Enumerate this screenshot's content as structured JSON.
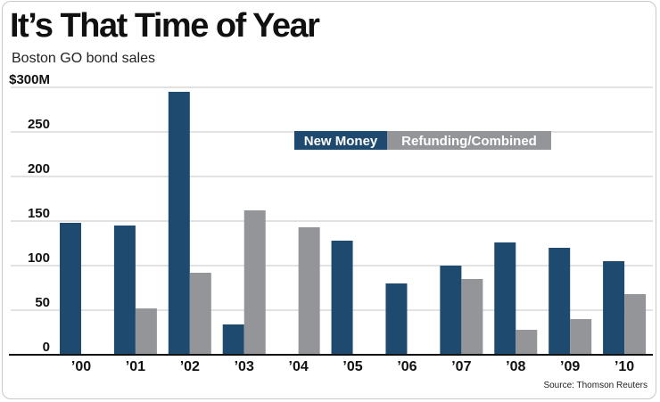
{
  "chart_data": {
    "type": "bar",
    "title": "It’s That Time of Year",
    "subtitle": "Boston GO bond sales",
    "categories": [
      "’00",
      "’01",
      "’02",
      "’03",
      "’04",
      "’05",
      "’06",
      "’07",
      "’08",
      "’09",
      "’10"
    ],
    "series": [
      {
        "name": "New Money",
        "color": "#1d4a6e",
        "values": [
          148,
          145,
          295,
          34,
          null,
          128,
          80,
          100,
          126,
          120,
          105
        ]
      },
      {
        "name": "Refunding/Combined",
        "color": "#939598",
        "values": [
          null,
          52,
          92,
          162,
          143,
          null,
          null,
          85,
          28,
          40,
          68
        ]
      }
    ],
    "y_ticks": [
      {
        "value": 0,
        "label": "0"
      },
      {
        "value": 50,
        "label": "50"
      },
      {
        "value": 100,
        "label": "100"
      },
      {
        "value": 150,
        "label": "150"
      },
      {
        "value": 200,
        "label": "200"
      },
      {
        "value": 250,
        "label": "250"
      },
      {
        "value": 300,
        "label": "$300M"
      }
    ],
    "ylim": [
      0,
      300
    ],
    "xlabel": "",
    "ylabel": "",
    "grid": true,
    "legend_position": "top-right",
    "source": "Source: Thomson Reuters"
  }
}
